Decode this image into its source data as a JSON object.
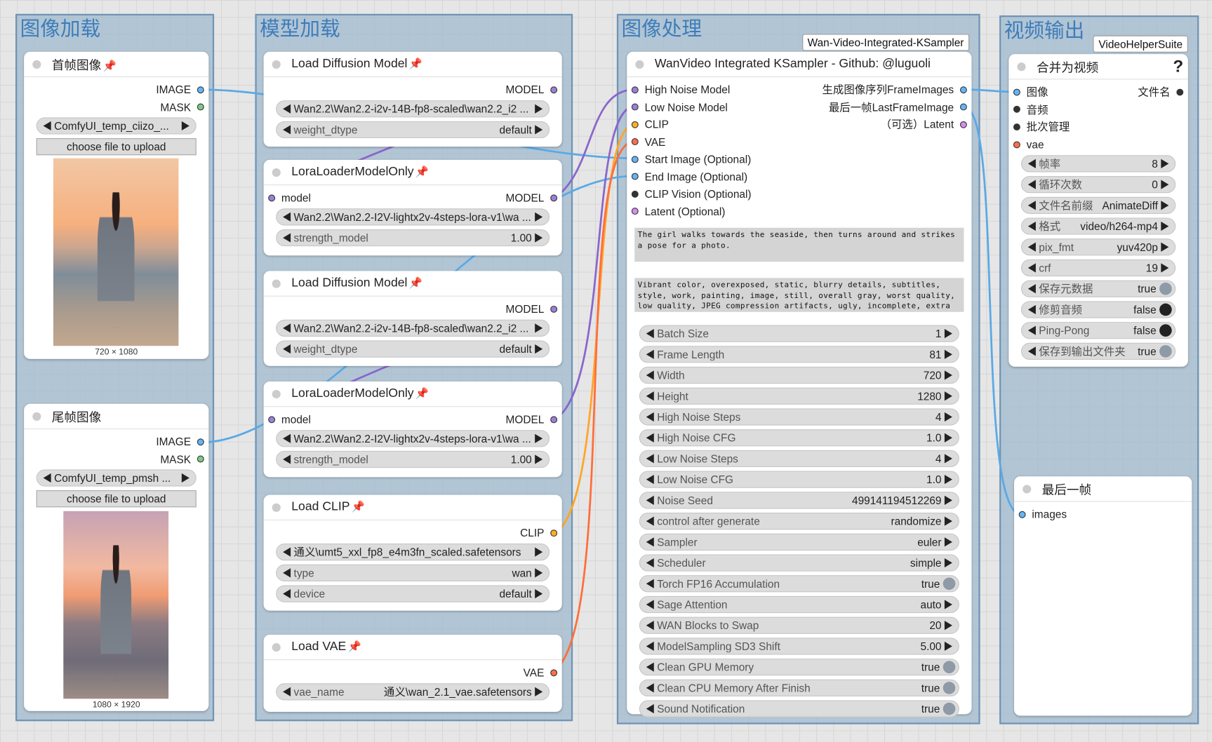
{
  "groups": [
    {
      "title": "图像加载"
    },
    {
      "title": "模型加载"
    },
    {
      "title": "图像处理",
      "badge": "Wan-Video-Integrated-KSampler"
    },
    {
      "title": "视频输出",
      "badge": "VideoHelperSuite"
    }
  ],
  "nodes": [
    {
      "title": "首帧图像",
      "outputs": [
        {
          "label": "IMAGE",
          "color": "#64b5f6"
        },
        {
          "label": "MASK",
          "color": "#81c784"
        }
      ],
      "widgets": [
        {
          "value": "ComfyUI_temp_ciizo_..."
        }
      ],
      "button": "choose file to upload",
      "caption": "720 × 1080"
    },
    {
      "title": "尾帧图像",
      "outputs": [
        {
          "label": "IMAGE",
          "color": "#64b5f6"
        },
        {
          "label": "MASK",
          "color": "#81c784"
        }
      ],
      "widgets": [
        {
          "value": "ComfyUI_temp_pmsh ..."
        }
      ],
      "button": "choose file to upload",
      "caption": "1080 × 1920"
    },
    {
      "title": "Load Diffusion Model",
      "outputs": [
        {
          "label": "MODEL",
          "color": "#9c7fd6"
        }
      ],
      "widgets": [
        {
          "value": "Wan2.2\\Wan2.2-i2v-14B-fp8-scaled\\wan2.2_i2 ..."
        },
        {
          "label": "weight_dtype",
          "value": "default"
        }
      ]
    },
    {
      "title": "LoraLoaderModelOnly",
      "inputs": [
        {
          "label": "model",
          "color": "#9c7fd6"
        }
      ],
      "outputs": [
        {
          "label": "MODEL",
          "color": "#9c7fd6"
        }
      ],
      "widgets": [
        {
          "value": "Wan2.2\\Wan2.2-I2V-lightx2v-4steps-lora-v1\\wa ..."
        },
        {
          "label": "strength_model",
          "value": "1.00"
        }
      ]
    },
    {
      "title": "Load Diffusion Model",
      "outputs": [
        {
          "label": "MODEL",
          "color": "#9c7fd6"
        }
      ],
      "widgets": [
        {
          "value": "Wan2.2\\Wan2.2-i2v-14B-fp8-scaled\\wan2.2_i2 ..."
        },
        {
          "label": "weight_dtype",
          "value": "default"
        }
      ]
    },
    {
      "title": "LoraLoaderModelOnly",
      "inputs": [
        {
          "label": "model",
          "color": "#9c7fd6"
        }
      ],
      "outputs": [
        {
          "label": "MODEL",
          "color": "#9c7fd6"
        }
      ],
      "widgets": [
        {
          "value": "Wan2.2\\Wan2.2-I2V-lightx2v-4steps-lora-v1\\wa ..."
        },
        {
          "label": "strength_model",
          "value": "1.00"
        }
      ]
    },
    {
      "title": "Load CLIP",
      "outputs": [
        {
          "label": "CLIP",
          "color": "#ffb020"
        }
      ],
      "widgets": [
        {
          "value": "通义\\umt5_xxl_fp8_e4m3fn_scaled.safetensors"
        },
        {
          "label": "type",
          "value": "wan"
        },
        {
          "label": "device",
          "value": "default"
        }
      ]
    },
    {
      "title": "Load VAE",
      "outputs": [
        {
          "label": "VAE",
          "color": "#ff6e4a"
        }
      ],
      "widgets": [
        {
          "label": "vae_name",
          "value": "通义\\wan_2.1_vae.safetensors"
        }
      ]
    },
    {
      "title": "WanVideo Integrated KSampler - Github: @luguoli",
      "inputs": [
        {
          "label": "High Noise Model",
          "color": "#9c7fd6"
        },
        {
          "label": "Low Noise Model",
          "color": "#9c7fd6"
        },
        {
          "label": "CLIP",
          "color": "#ffb020"
        },
        {
          "label": "VAE",
          "color": "#ff6e4a"
        },
        {
          "label": "Start Image (Optional)",
          "color": "#64b5f6"
        },
        {
          "label": "End Image (Optional)",
          "color": "#64b5f6"
        },
        {
          "label": "CLIP Vision (Optional)",
          "color": "#333333"
        },
        {
          "label": "Latent (Optional)",
          "color": "#d78cf0"
        }
      ],
      "outputs": [
        {
          "label": "生成图像序列FrameImages",
          "color": "#64b5f6"
        },
        {
          "label": "最后一帧LastFrameImage",
          "color": "#64b5f6"
        },
        {
          "label": "（可选）Latent",
          "color": "#d78cf0"
        }
      ],
      "prompts": [
        "The girl walks towards the seaside, then turns around and strikes a pose for a photo.",
        "Vibrant color, overexposed, static, blurry details, subtitles, style, work, painting, image, still, overall gray, worst quality, low quality, JPEG compression artifacts, ugly, incomplete, extra"
      ],
      "widgets": [
        {
          "label": "Batch Size",
          "value": "1"
        },
        {
          "label": "Frame Length",
          "value": "81"
        },
        {
          "label": "Width",
          "value": "720"
        },
        {
          "label": "Height",
          "value": "1280"
        },
        {
          "label": "High Noise Steps",
          "value": "4"
        },
        {
          "label": "High Noise CFG",
          "value": "1.0"
        },
        {
          "label": "Low Noise Steps",
          "value": "4"
        },
        {
          "label": "Low Noise CFG",
          "value": "1.0"
        },
        {
          "label": "Noise Seed",
          "value": "499141194512269"
        },
        {
          "label": "control after generate",
          "value": "randomize"
        },
        {
          "label": "Sampler",
          "value": "euler"
        },
        {
          "label": "Scheduler",
          "value": "simple"
        },
        {
          "label": "Torch FP16 Accumulation",
          "value": "true"
        },
        {
          "label": "Sage Attention",
          "value": "auto"
        },
        {
          "label": "WAN Blocks to Swap",
          "value": "20"
        },
        {
          "label": "ModelSampling SD3 Shift",
          "value": "5.00"
        },
        {
          "label": "Clean GPU Memory",
          "value": "true"
        },
        {
          "label": "Clean CPU Memory After Finish",
          "value": "true"
        },
        {
          "label": "Sound Notification",
          "value": "true"
        }
      ]
    },
    {
      "title": "合并为视频",
      "help": "?",
      "inputs": [
        {
          "label": "图像",
          "color": "#64b5f6"
        },
        {
          "label": "音频",
          "color": "#333333"
        },
        {
          "label": "批次管理",
          "color": "#333333"
        },
        {
          "label": "vae",
          "color": "#ff6e4a"
        }
      ],
      "outputs": [
        {
          "label": "文件名",
          "color": "#333333"
        }
      ],
      "widgets": [
        {
          "label": "帧率",
          "value": "8"
        },
        {
          "label": "循环次数",
          "value": "0"
        },
        {
          "label": "文件名前缀",
          "value": "AnimateDiff"
        },
        {
          "label": "格式",
          "value": "video/h264-mp4"
        },
        {
          "label": "pix_fmt",
          "value": "yuv420p"
        },
        {
          "label": "crf",
          "value": "19"
        },
        {
          "label": "保存元数据",
          "value": "true"
        },
        {
          "label": "修剪音频",
          "value": "false"
        },
        {
          "label": "Ping-Pong",
          "value": "false"
        },
        {
          "label": "保存到输出文件夹",
          "value": "true"
        }
      ]
    },
    {
      "title": "最后一帧",
      "inputs": [
        {
          "label": "images",
          "color": "#64b5f6"
        }
      ]
    }
  ]
}
